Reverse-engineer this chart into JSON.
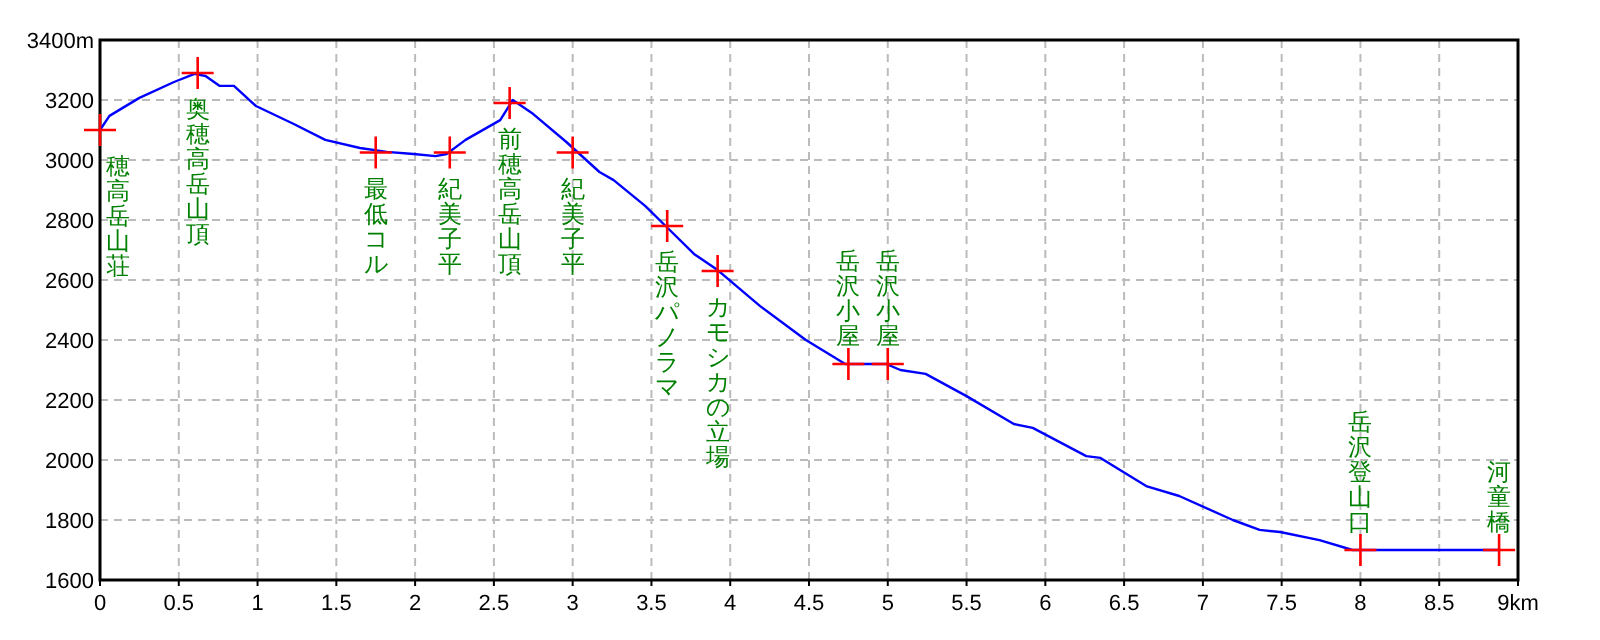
{
  "chart_data": {
    "type": "line",
    "xlim": [
      0,
      9
    ],
    "ylim": [
      1600,
      3400
    ],
    "xticks": [
      0,
      0.5,
      1,
      1.5,
      2,
      2.5,
      3,
      3.5,
      4,
      4.5,
      5,
      5.5,
      6,
      6.5,
      7,
      7.5,
      8,
      8.5,
      {
        "value": 9,
        "label": "9km"
      }
    ],
    "yticks": [
      1600,
      1800,
      2000,
      2200,
      2400,
      2600,
      2800,
      3000,
      3200,
      {
        "value": 3400,
        "label": "3400m"
      }
    ],
    "grid": true,
    "series": [
      {
        "color": "#0000ff",
        "marker": "none",
        "x": [
          0,
          0.06,
          0.25,
          0.47,
          0.6,
          0.67,
          0.76,
          0.85,
          0.99,
          1.23,
          1.43,
          1.65,
          1.82,
          1.99,
          2.13,
          2.2,
          2.32,
          2.54,
          2.62,
          2.75,
          2.96,
          3.17,
          3.26,
          3.46,
          3.59,
          3.77,
          3.92,
          4.19,
          4.48,
          4.73,
          4.99,
          5.08,
          5.24,
          5.5,
          5.8,
          5.92,
          6.26,
          6.35,
          6.64,
          6.85,
          7.19,
          7.36,
          7.49,
          7.74,
          7.95,
          8.02,
          8.88
        ],
        "values": [
          3100,
          3147,
          3207,
          3260,
          3287,
          3280,
          3247,
          3247,
          3180,
          3120,
          3067,
          3040,
          3027,
          3020,
          3013,
          3020,
          3067,
          3133,
          3200,
          3153,
          3060,
          2960,
          2933,
          2847,
          2780,
          2687,
          2633,
          2513,
          2400,
          2320,
          2320,
          2300,
          2287,
          2213,
          2120,
          2107,
          2013,
          2007,
          1913,
          1880,
          1800,
          1767,
          1760,
          1733,
          1700,
          1700,
          1700
        ]
      },
      {
        "type": "scatter",
        "color": "#ff0000",
        "marker": "cross",
        "x": [
          0,
          0.62,
          1.75,
          2.22,
          2.6,
          3.0,
          3.6,
          3.92,
          4.75,
          5.0,
          8.0,
          8.88
        ],
        "values": [
          3100,
          3290,
          3025,
          3025,
          3190,
          3025,
          2780,
          2630,
          2320,
          2320,
          1700,
          1700
        ]
      }
    ],
    "annotations": [
      {
        "text": "穂高岳山荘",
        "x": 0,
        "y": 3100
      },
      {
        "text": "奥穂高岳山頂",
        "x": 0.62,
        "y": 3290
      },
      {
        "text": "最低コル",
        "x": 1.75,
        "y": 3025
      },
      {
        "text": "紀美子平",
        "x": 2.22,
        "y": 3025
      },
      {
        "text": "前穂高岳山頂",
        "x": 2.6,
        "y": 3190
      },
      {
        "text": "紀美子平",
        "x": 3.0,
        "y": 3025
      },
      {
        "text": "岳沢パノラマ",
        "x": 3.6,
        "y": 2780
      },
      {
        "text": "カモシカの立場",
        "x": 3.92,
        "y": 2630
      },
      {
        "text": "岳沢小屋",
        "x": 4.75,
        "y": 2320
      },
      {
        "text": "岳沢小屋",
        "x": 5.0,
        "y": 2320
      },
      {
        "text": "岳沢登山口",
        "x": 8.0,
        "y": 1700
      },
      {
        "text": "河童橋",
        "x": 8.88,
        "y": 1700
      }
    ]
  }
}
